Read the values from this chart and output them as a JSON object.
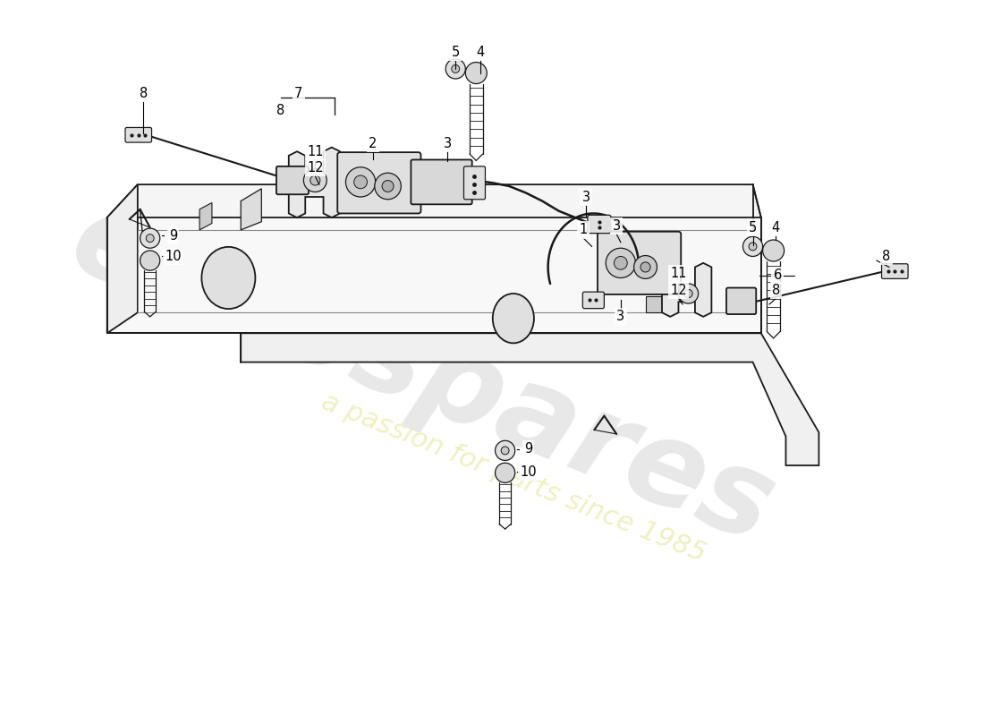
{
  "bg_color": "#ffffff",
  "line_color": "#1a1a1a",
  "watermark_color1": "#e8e8e8",
  "watermark_color2": "#f0f0c0",
  "figsize": [
    11.0,
    8.0
  ],
  "dpi": 100
}
